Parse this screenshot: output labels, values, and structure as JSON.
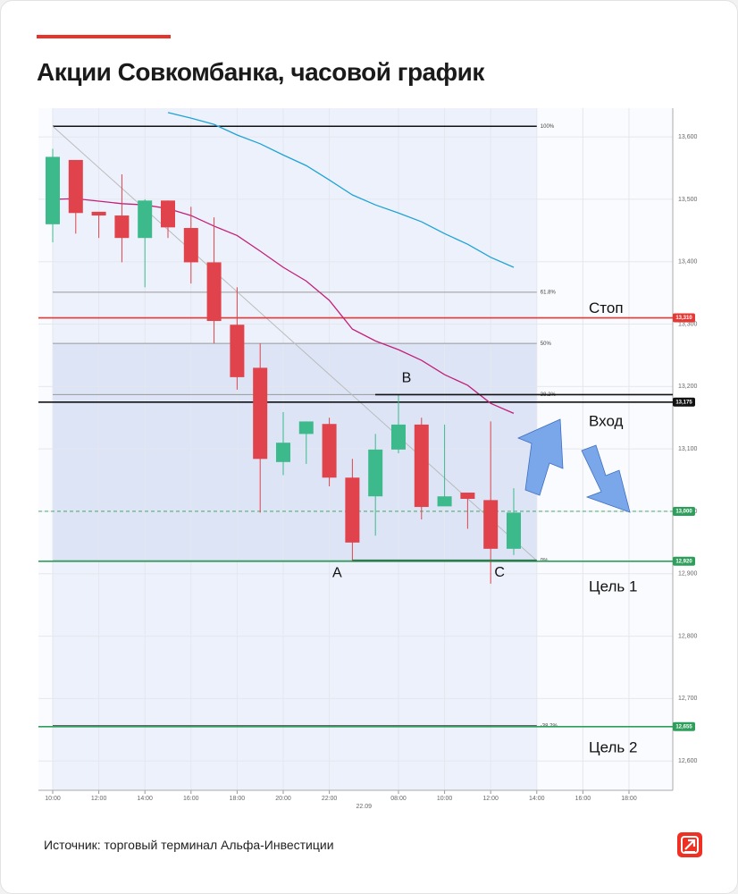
{
  "header": {
    "title": "Акции Совкомбанка, часовой график"
  },
  "footer": {
    "source": "Источник: торговый терминал Альфа-Инвестиции"
  },
  "chart_data": {
    "type": "candlestick",
    "up_color": "#3dba8b",
    "down_color": "#e0434b",
    "x": [
      0,
      1,
      2,
      3,
      4,
      5,
      6,
      7,
      8,
      9,
      10,
      11,
      12,
      13,
      14,
      15,
      16,
      17,
      18,
      19,
      20
    ],
    "open": [
      13460,
      13563,
      13480,
      13474,
      13438,
      13498,
      13454,
      13399,
      13299,
      13230,
      13079,
      13124,
      13140,
      13054,
      13024,
      13099,
      13139,
      13008,
      13030,
      13018,
      12940
    ],
    "high": [
      13581,
      13563,
      13480,
      13540,
      13500,
      13498,
      13488,
      13471,
      13359,
      13269,
      13159,
      13144,
      13150,
      13084,
      13124,
      13187,
      13150,
      13139,
      13030,
      13144,
      13037
    ],
    "low": [
      13431,
      13445,
      13438,
      13399,
      13359,
      13438,
      13365,
      13269,
      13195,
      12998,
      13058,
      13076,
      13040,
      12921,
      12961,
      13093,
      12987,
      13008,
      12972,
      12884,
      12930
    ],
    "close": [
      13568,
      13478,
      13474,
      13438,
      13498,
      13455,
      13399,
      13305,
      13215,
      13084,
      13110,
      13144,
      13054,
      12950,
      13099,
      13139,
      13007,
      13024,
      13020,
      12940,
      12998
    ],
    "lines": [
      {
        "color": "#1fa3d6",
        "values": [
          null,
          null,
          null,
          null,
          null,
          13639,
          13630,
          13620,
          13603,
          13589,
          13571,
          13554,
          13531,
          13507,
          13491,
          13478,
          13464,
          13445,
          13428,
          13407,
          13391
        ]
      },
      {
        "color": "#c2207a",
        "values": [
          13500,
          13501,
          13497,
          13493,
          13491,
          13485,
          13474,
          13457,
          13442,
          13417,
          13391,
          13369,
          13338,
          13292,
          13273,
          13259,
          13242,
          13219,
          13202,
          13173,
          13157
        ]
      }
    ],
    "xlim": [
      -0.62,
      26.9
    ],
    "ylim": [
      12553,
      13646
    ],
    "xticks": [
      {
        "value": 0,
        "label": "10:00"
      },
      {
        "value": 2,
        "label": "12:00"
      },
      {
        "value": 4,
        "label": "14:00"
      },
      {
        "value": 6,
        "label": "16:00"
      },
      {
        "value": 8,
        "label": "18:00"
      },
      {
        "value": 10,
        "label": "20:00"
      },
      {
        "value": 12,
        "label": "22:00"
      },
      {
        "value": 15,
        "label": "08:00"
      },
      {
        "value": 17,
        "label": "10:00"
      },
      {
        "value": 19,
        "label": "12:00"
      },
      {
        "value": 21,
        "label": "14:00"
      },
      {
        "value": 23,
        "label": "16:00"
      },
      {
        "value": 25,
        "label": "18:00"
      }
    ],
    "date_labels": [
      {
        "value": 13.5,
        "label": "22.09"
      }
    ],
    "yticks": [
      {
        "value": 12600,
        "label": "12,600"
      },
      {
        "value": 12700,
        "label": "12,700"
      },
      {
        "value": 12800,
        "label": "12,800"
      },
      {
        "value": 12900,
        "label": "12,900"
      },
      {
        "value": 13000,
        "label": "13,000"
      },
      {
        "value": 13100,
        "label": "13,100"
      },
      {
        "value": 13200,
        "label": "13,200"
      },
      {
        "value": 13300,
        "label": "13,300"
      },
      {
        "value": 13400,
        "label": "13,400"
      },
      {
        "value": 13500,
        "label": "13,500"
      },
      {
        "value": 13600,
        "label": "13,600"
      }
    ],
    "grid": true,
    "fibonacci": {
      "x": [
        0,
        21
      ],
      "color": "#999999",
      "levels": [
        {
          "value": 13617,
          "label": "100%"
        },
        {
          "value": 13351,
          "label": "61.8%"
        },
        {
          "value": 13269,
          "label": "50%"
        },
        {
          "value": 13187,
          "label": "38.2%"
        },
        {
          "value": 12921,
          "label": "0%"
        },
        {
          "value": 12656,
          "label": "-38.2%"
        }
      ]
    },
    "levels": [
      {
        "name": "Стоп",
        "value": 13310,
        "label": "13,310",
        "color": "#e53935",
        "dashed": false
      },
      {
        "name": "Вход",
        "value": 13175,
        "label": "13,175",
        "color": "#111111",
        "dashed": false
      },
      {
        "value": 13000,
        "label": "13,000",
        "color": "#2e9e5b",
        "dashed": true
      },
      {
        "name": "Цель 1",
        "value": 12920,
        "label": "12,920",
        "color": "#2e9e5b",
        "dashed": false
      },
      {
        "name": "Цель 2",
        "value": 12655,
        "label": "12,655",
        "color": "#2e9e5b",
        "dashed": false
      }
    ],
    "points": [
      {
        "name": "A",
        "x": 13,
        "y": 12921
      },
      {
        "name": "B",
        "x": 15,
        "y": 13187
      },
      {
        "name": "C",
        "x": 19,
        "y": 12884
      }
    ]
  }
}
